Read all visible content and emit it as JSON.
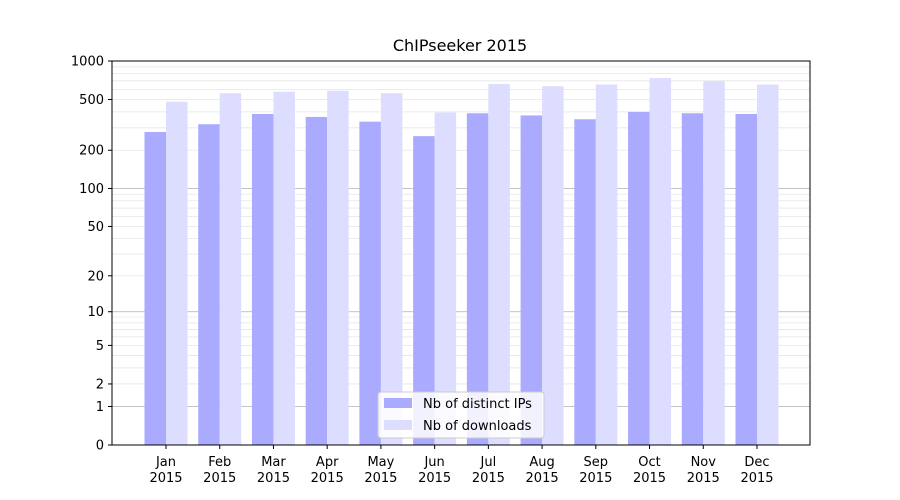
{
  "chart_data": {
    "type": "bar",
    "title": "ChIPseeker 2015",
    "xlabel": "",
    "ylabel": "",
    "y_scale": "log1p",
    "ylim": [
      0,
      1000
    ],
    "y_ticks": [
      0,
      1,
      2,
      5,
      10,
      20,
      50,
      100,
      200,
      500,
      1000
    ],
    "grid": true,
    "legend_placement": "bottom-center",
    "categories": [
      [
        "Jan",
        "2015"
      ],
      [
        "Feb",
        "2015"
      ],
      [
        "Mar",
        "2015"
      ],
      [
        "Apr",
        "2015"
      ],
      [
        "May",
        "2015"
      ],
      [
        "Jun",
        "2015"
      ],
      [
        "Jul",
        "2015"
      ],
      [
        "Aug",
        "2015"
      ],
      [
        "Sep",
        "2015"
      ],
      [
        "Oct",
        "2015"
      ],
      [
        "Nov",
        "2015"
      ],
      [
        "Dec",
        "2015"
      ]
    ],
    "series": [
      {
        "name": "Nb of distinct IPs",
        "color": "#aaaaff",
        "values": [
          278,
          320,
          385,
          365,
          335,
          258,
          390,
          375,
          350,
          400,
          390,
          385
        ]
      },
      {
        "name": "Nb of downloads",
        "color": "#ddddff",
        "values": [
          480,
          560,
          575,
          585,
          560,
          395,
          660,
          635,
          655,
          735,
          695,
          655
        ]
      }
    ]
  }
}
